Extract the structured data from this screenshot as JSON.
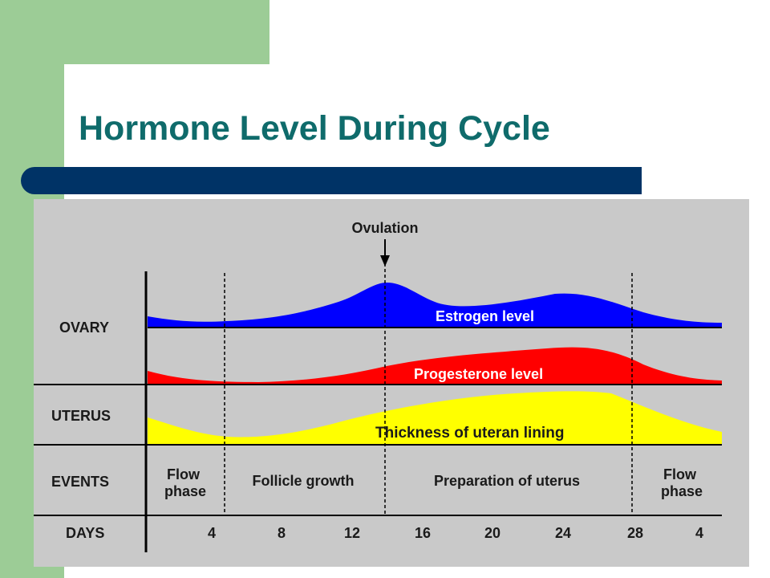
{
  "title": "Hormone Level During Cycle",
  "colors": {
    "green": "#9ccc96",
    "navy": "#003366",
    "title": "#0f6b6b",
    "panel": "#c9c9c9",
    "estrogen": "#0000ff",
    "progesterone": "#ff0000",
    "lining": "#ffff00"
  },
  "diagram": {
    "ovulation_label": "Ovulation",
    "row_labels": {
      "ovary": "OVARY",
      "uterus": "UTERUS",
      "events": "EVENTS",
      "days": "DAYS"
    },
    "curve_labels": {
      "estrogen": "Estrogen level",
      "progesterone": "Progesterone level",
      "lining": "Thickness of uteran lining"
    },
    "events": {
      "flow_start": [
        "Flow",
        "phase"
      ],
      "follicle": "Follicle growth",
      "preparation": "Preparation of uterus",
      "flow_end": [
        "Flow",
        "phase"
      ]
    },
    "day_ticks": [
      "4",
      "8",
      "12",
      "16",
      "20",
      "24",
      "28",
      "4"
    ]
  }
}
